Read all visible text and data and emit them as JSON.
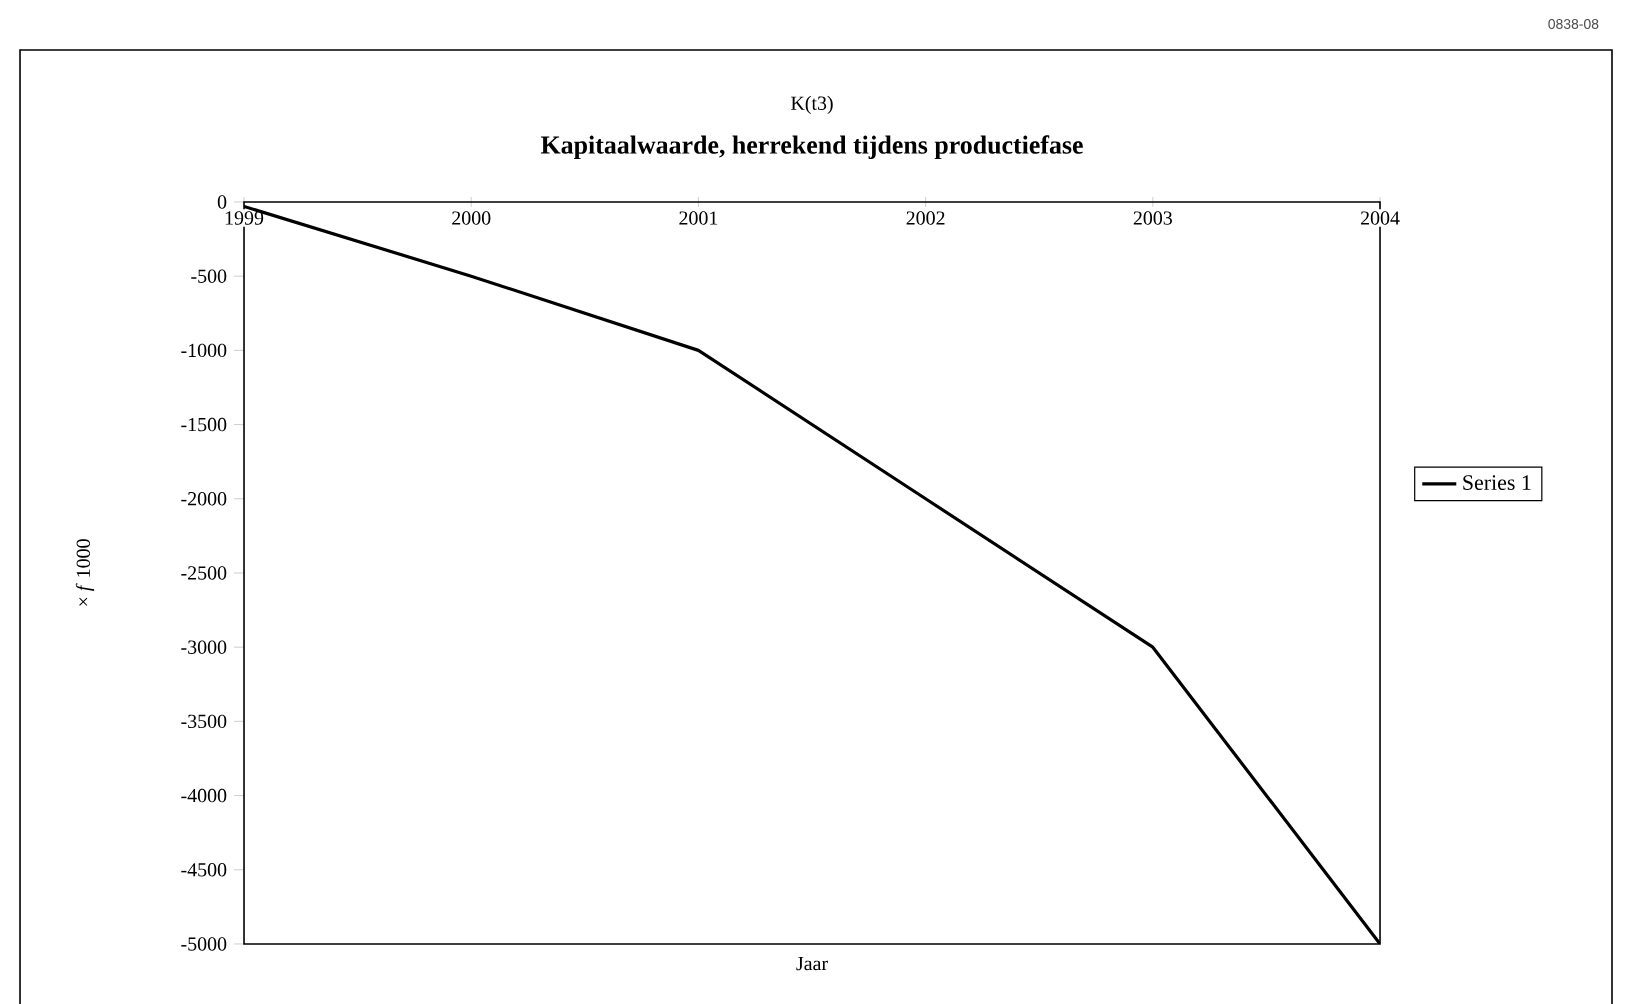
{
  "chart_data": {
    "type": "line",
    "title": "K(t3)",
    "subtitle": "Kapitaalwaarde, herrekend tijdens productiefase",
    "xlabel": "Jaar",
    "ylabel": "× *f* 1000",
    "annotations": [
      "0838-08"
    ],
    "x": [
      1999,
      2000,
      2001,
      2002,
      2003,
      2004
    ],
    "series": [
      {
        "name": "Series 1",
        "color": "#000000",
        "values": [
          -30,
          -500,
          -1000,
          -2000,
          -3000,
          -5000
        ]
      }
    ],
    "xlim": [
      1999,
      2004
    ],
    "xticks": [
      1999,
      2000,
      2001,
      2002,
      2003,
      2004
    ],
    "ylim": [
      -5000,
      0
    ],
    "yticks": [
      -5000,
      -4500,
      -4000,
      -3500,
      -3000,
      -2500,
      -2000,
      -1500,
      -1000,
      -500,
      0
    ],
    "legend": "right",
    "grid": false,
    "marker": "none",
    "line_style": "solid"
  }
}
